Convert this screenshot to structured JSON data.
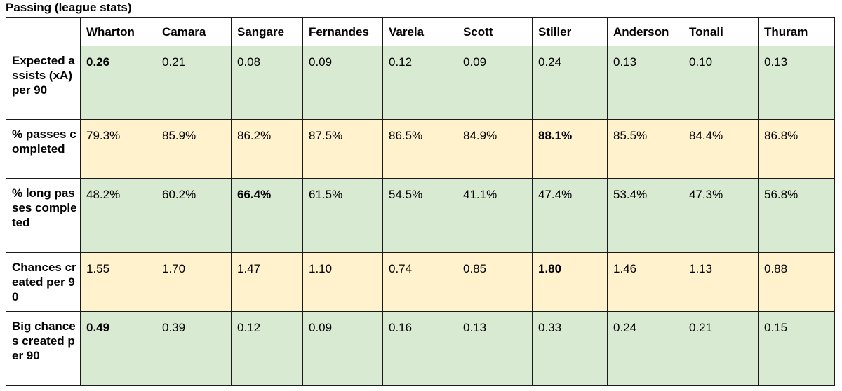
{
  "title": "Passing (league stats)",
  "players": [
    "Wharton",
    "Camara",
    "Sangare",
    "Fernandes",
    "Varela",
    "Scott",
    "Stiller",
    "Anderson",
    "Tonali",
    "Thuram"
  ],
  "colors": {
    "green": "#d9ead3",
    "yellow": "#fff2cc",
    "border": "#1a1a1a"
  },
  "rows": [
    {
      "label": "Expected assists (xA) per 90",
      "tone": "green",
      "values": [
        "0.26",
        "0.21",
        "0.08",
        "0.09",
        "0.12",
        "0.09",
        "0.24",
        "0.13",
        "0.10",
        "0.13"
      ],
      "bold_index": 0
    },
    {
      "label": "% passes completed",
      "tone": "yellow",
      "values": [
        "79.3%",
        "85.9%",
        "86.2%",
        "87.5%",
        "86.5%",
        "84.9%",
        "88.1%",
        "85.5%",
        "84.4%",
        "86.8%"
      ],
      "bold_index": 6
    },
    {
      "label": "% long passes completed",
      "tone": "green",
      "values": [
        "48.2%",
        "60.2%",
        "66.4%",
        "61.5%",
        "54.5%",
        "41.1%",
        "47.4%",
        "53.4%",
        "47.3%",
        "56.8%"
      ],
      "bold_index": 2
    },
    {
      "label": "Chances created per 90",
      "tone": "yellow",
      "values": [
        "1.55",
        "1.70",
        "1.47",
        "1.10",
        "0.74",
        "0.85",
        "1.80",
        "1.46",
        "1.13",
        "0.88"
      ],
      "bold_index": 6
    },
    {
      "label": "Big chances created per 90",
      "tone": "green",
      "values": [
        "0.49",
        "0.39",
        "0.12",
        "0.09",
        "0.16",
        "0.13",
        "0.33",
        "0.24",
        "0.21",
        "0.15"
      ],
      "bold_index": 0
    }
  ]
}
